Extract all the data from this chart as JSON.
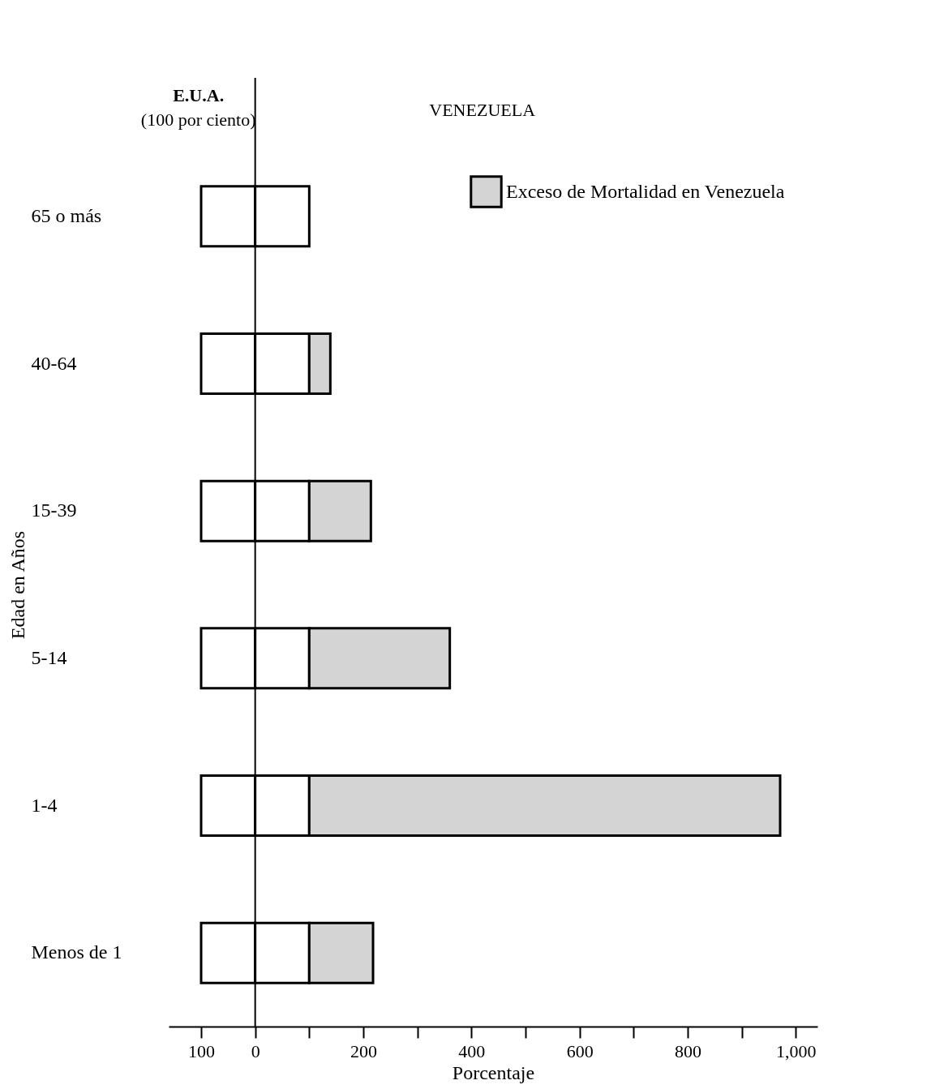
{
  "chart_data": {
    "type": "bar",
    "orientation": "horizontal",
    "stacked": true,
    "xlabel": "Porcentaje",
    "ylabel": "Edad en Años",
    "categories": [
      "65 o más",
      "40-64",
      "15-39",
      "5-14",
      "1-4",
      "Menos de 1"
    ],
    "series": [
      {
        "color": "#ffffff",
        "values": [
          -100,
          -100,
          -100,
          -100,
          -100,
          -100
        ]
      },
      {
        "color": "#ffffff",
        "values": [
          100,
          100,
          100,
          100,
          100,
          100
        ]
      },
      {
        "name": "Exceso de Mortalidad en Venezuela",
        "color": "#d4d4d4",
        "values": [
          null,
          39,
          114,
          260,
          871,
          118
        ]
      }
    ],
    "xlim": [
      -160,
      1040
    ],
    "xticks": [
      {
        "value": -100,
        "label": "100"
      },
      0,
      {
        "value": 100,
        "label": null
      },
      200,
      {
        "value": 300,
        "label": null
      },
      400,
      {
        "value": 500,
        "label": null
      },
      600,
      {
        "value": 700,
        "label": null
      },
      800,
      {
        "value": 900,
        "label": null
      },
      {
        "value": 1000,
        "label": "1,000"
      }
    ],
    "ref_lines": [
      {
        "axis": "x",
        "value": 0,
        "label": null
      }
    ],
    "annotations": [
      "E.U.A.",
      "(100 por ciento)",
      "VENEZUELA"
    ],
    "legend": "top right",
    "grid": false
  }
}
